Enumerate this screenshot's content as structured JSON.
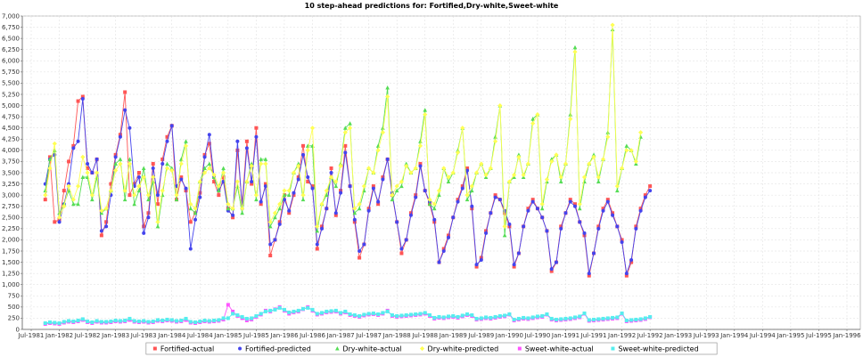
{
  "chart_data": {
    "type": "line",
    "title": "10 step-ahead predictions for: Fortified,Dry-white,Sweet-white",
    "xlabel": "",
    "ylabel": "",
    "ylim": [
      0,
      7000
    ],
    "y_ticks": [
      0,
      250,
      500,
      750,
      1000,
      1250,
      1500,
      1750,
      2000,
      2250,
      2500,
      2750,
      3000,
      3250,
      3500,
      3750,
      4000,
      4250,
      4500,
      4750,
      5000,
      5250,
      5500,
      5750,
      6000,
      6250,
      6500,
      6750,
      7000
    ],
    "y_tick_labels": [
      "0",
      "250",
      "500",
      "750",
      "1,000",
      "1,250",
      "1,500",
      "1,750",
      "2,000",
      "2,250",
      "2,500",
      "2,750",
      "3,000",
      "3,250",
      "3,500",
      "3,750",
      "4,000",
      "4,250",
      "4,500",
      "4,750",
      "5,000",
      "5,250",
      "5,500",
      "5,750",
      "6,000",
      "6,250",
      "6,500",
      "6,750",
      "7,000"
    ],
    "x_ticks": [
      "Jul-1981",
      "Jan-1982",
      "Jul-1982",
      "Jan-1983",
      "Jul-1983",
      "Jan-1984",
      "Jul-1984",
      "Jan-1985",
      "Jul-1985",
      "Jan-1986",
      "Jul-1986",
      "Jan-1987",
      "Jul-1987",
      "Jan-1988",
      "Jul-1988",
      "Jan-1989",
      "Jul-1989",
      "Jan-1990",
      "Jul-1990",
      "Jan-1991",
      "Jul-1991",
      "Jan-1992",
      "Jul-1992",
      "Jan-1993",
      "Jul-1993",
      "Jan-1994",
      "Jul-1994",
      "Jan-1995",
      "Jul-1995",
      "Jan-1996"
    ],
    "x_start": "1981-07",
    "x_end": "1996-01",
    "grid": true,
    "legend_position": "bottom",
    "series": [
      {
        "name": "Fortified-actual",
        "color": "#ff5555",
        "marker": "square",
        "start": "1981-10",
        "values": [
          2900,
          3850,
          2400,
          2450,
          3100,
          3750,
          4100,
          5100,
          5200,
          3600,
          3500,
          3800,
          2100,
          2400,
          3250,
          3900,
          4350,
          5300,
          3000,
          3250,
          3500,
          2300,
          2600,
          3700,
          2800,
          3800,
          4300,
          4550,
          2900,
          3400,
          3100,
          2400,
          2600,
          3050,
          3900,
          4150,
          3300,
          3000,
          3400,
          2700,
          2500,
          4000,
          2800,
          4200,
          3250,
          4500,
          2800,
          3250,
          1650,
          2000,
          2400,
          3000,
          2600,
          3000,
          3400,
          4100,
          3300,
          3200,
          1800,
          2300,
          2700,
          3600,
          2550,
          3100,
          4100,
          3200,
          2400,
          1600,
          1900,
          2700,
          3200,
          2800,
          3400,
          3800,
          3000,
          2400,
          1700,
          2000,
          2600,
          3000,
          3700,
          3100,
          2800,
          2400,
          1500,
          1800,
          2100,
          2500,
          2900,
          3200,
          3600,
          2700,
          1400,
          1600,
          2200,
          2600,
          3000,
          2900,
          2600,
          2300,
          1400,
          1700,
          2300,
          2700,
          2900,
          2700,
          2500,
          2200,
          1300,
          1500,
          2300,
          2600,
          2900,
          2800,
          2400,
          2100,
          1200,
          1700,
          2300,
          2700,
          2900,
          2600,
          2300,
          2000,
          1200,
          1500,
          2300,
          2700,
          3000,
          3200
        ]
      },
      {
        "name": "Fortified-predicted",
        "color": "#4444ee",
        "marker": "circle",
        "start": "1981-10",
        "values": [
          3250,
          3800,
          3900,
          2400,
          2800,
          3250,
          4050,
          4200,
          5150,
          3700,
          3500,
          3800,
          2200,
          2300,
          3000,
          3850,
          4300,
          4900,
          4500,
          3200,
          3400,
          2150,
          2500,
          3600,
          3000,
          3700,
          4200,
          4550,
          3200,
          3350,
          3150,
          1800,
          2450,
          2950,
          3850,
          4350,
          3400,
          3100,
          3300,
          2650,
          2550,
          4200,
          2700,
          4050,
          3300,
          4300,
          2850,
          3200,
          1900,
          2000,
          2350,
          2900,
          2650,
          3050,
          3350,
          3900,
          3400,
          3150,
          1900,
          2250,
          2700,
          3500,
          2600,
          3050,
          3950,
          3200,
          2450,
          1750,
          1900,
          2650,
          3150,
          2850,
          3350,
          3800,
          3050,
          2400,
          1800,
          2000,
          2550,
          2950,
          3650,
          3100,
          2850,
          2450,
          1500,
          1750,
          2050,
          2500,
          2850,
          3150,
          3550,
          2750,
          1450,
          1550,
          2150,
          2600,
          2950,
          2900,
          2650,
          2350,
          1450,
          1700,
          2300,
          2650,
          2850,
          2700,
          2500,
          2200,
          1350,
          1500,
          2250,
          2600,
          2850,
          2750,
          2400,
          2150,
          1250,
          1700,
          2250,
          2650,
          2850,
          2550,
          2300,
          1950,
          1250,
          1550,
          2250,
          2650,
          2950,
          3100
        ]
      },
      {
        "name": "Dry-white-actual",
        "color": "#55dd55",
        "marker": "triangle",
        "start": "1981-10",
        "values": [
          3100,
          3800,
          4000,
          2600,
          2800,
          3100,
          2800,
          2800,
          3400,
          3400,
          2900,
          3400,
          2600,
          2700,
          3100,
          3700,
          3800,
          2900,
          3800,
          2800,
          3100,
          3600,
          2900,
          3300,
          2300,
          3000,
          3700,
          3600,
          2900,
          3800,
          4200,
          2700,
          2600,
          3300,
          3600,
          3700,
          3400,
          3100,
          3600,
          2700,
          2700,
          3200,
          2600,
          3300,
          3700,
          2900,
          3800,
          3800,
          2300,
          2500,
          2700,
          3000,
          3000,
          3500,
          3700,
          2900,
          4100,
          4100,
          2200,
          2800,
          3000,
          3400,
          3200,
          3700,
          4500,
          4600,
          2600,
          2700,
          3100,
          3600,
          3500,
          4100,
          4500,
          5400,
          2900,
          3100,
          3200,
          3700,
          3500,
          3600,
          4200,
          4900,
          2800,
          2700,
          3000,
          3600,
          3300,
          3500,
          4000,
          4500,
          2900,
          3100,
          3500,
          3700,
          3400,
          3600,
          4300,
          5000,
          2100,
          3300,
          3400,
          3900,
          3400,
          3700,
          4700,
          4800,
          2700,
          3300,
          3800,
          3900,
          3300,
          3700,
          4800,
          6300,
          2700,
          3300,
          3700,
          3900,
          3300,
          3800,
          4400,
          6700,
          3100,
          3600,
          4100,
          4000,
          3700,
          4300
        ]
      },
      {
        "name": "Dry-white-predicted",
        "color": "#ffff55",
        "marker": "diamond",
        "start": "1981-10",
        "values": [
          3000,
          3600,
          4150,
          2500,
          2750,
          3200,
          2900,
          3200,
          3850,
          3500,
          3000,
          3500,
          2650,
          2700,
          3100,
          3550,
          3700,
          3100,
          3700,
          3000,
          3200,
          3400,
          3000,
          3400,
          2400,
          3100,
          3600,
          3550,
          3000,
          3700,
          4100,
          2800,
          2700,
          3300,
          3500,
          3600,
          3450,
          3200,
          3500,
          2800,
          2700,
          3300,
          2700,
          3300,
          3650,
          3000,
          3700,
          3700,
          2400,
          2600,
          2800,
          3100,
          3100,
          3500,
          3650,
          3000,
          4000,
          4500,
          2300,
          2800,
          3100,
          3400,
          3300,
          3650,
          4400,
          4500,
          2700,
          2800,
          3200,
          3600,
          3500,
          4000,
          4400,
          5200,
          3000,
          3200,
          3300,
          3650,
          3500,
          3600,
          4100,
          4800,
          2900,
          2800,
          3100,
          3600,
          3400,
          3500,
          3950,
          4500,
          3000,
          3200,
          3500,
          3700,
          3450,
          3600,
          4200,
          5000,
          2300,
          3300,
          3450,
          3850,
          3450,
          3700,
          4600,
          4800,
          2800,
          3350,
          3750,
          3900,
          3400,
          3700,
          4700,
          6200,
          2800,
          3400,
          3700,
          3850,
          3400,
          3800,
          4300,
          6800,
          3200,
          3600,
          4000,
          4000,
          3750,
          4400
        ]
      },
      {
        "name": "Sweet-white-actual",
        "color": "#ff55ff",
        "marker": "square",
        "start": "1981-10",
        "values": [
          120,
          140,
          130,
          120,
          150,
          170,
          160,
          180,
          210,
          160,
          140,
          170,
          150,
          150,
          160,
          180,
          170,
          180,
          210,
          170,
          160,
          170,
          150,
          160,
          190,
          180,
          200,
          190,
          170,
          180,
          210,
          150,
          140,
          160,
          180,
          170,
          180,
          190,
          220,
          550,
          400,
          300,
          250,
          200,
          220,
          280,
          330,
          420,
          400,
          450,
          500,
          420,
          350,
          380,
          400,
          450,
          500,
          420,
          330,
          350,
          380,
          390,
          400,
          350,
          380,
          320,
          300,
          280,
          310,
          330,
          340,
          320,
          350,
          420,
          300,
          280,
          290,
          300,
          310,
          320,
          330,
          350,
          300,
          240,
          260,
          250,
          270,
          280,
          260,
          290,
          320,
          300,
          220,
          230,
          250,
          240,
          260,
          280,
          290,
          330,
          200,
          220,
          240,
          230,
          250,
          270,
          280,
          330,
          220,
          200,
          210,
          220,
          230,
          250,
          270,
          350,
          190,
          200,
          210,
          220,
          230,
          240,
          250,
          350,
          180,
          190,
          200,
          210,
          230,
          270
        ]
      },
      {
        "name": "Sweet-white-predicted",
        "color": "#55eeee",
        "marker": "square",
        "start": "1981-10",
        "values": [
          140,
          160,
          150,
          140,
          170,
          190,
          180,
          200,
          230,
          180,
          160,
          190,
          170,
          170,
          180,
          200,
          190,
          200,
          240,
          190,
          180,
          190,
          170,
          180,
          210,
          200,
          220,
          210,
          190,
          200,
          240,
          170,
          160,
          180,
          200,
          190,
          200,
          210,
          250,
          250,
          350,
          320,
          280,
          240,
          250,
          300,
          350,
          400,
          420,
          440,
          480,
          440,
          380,
          400,
          420,
          460,
          480,
          440,
          350,
          370,
          400,
          410,
          420,
          370,
          400,
          340,
          320,
          300,
          330,
          350,
          360,
          340,
          370,
          400,
          320,
          300,
          310,
          320,
          330,
          340,
          350,
          370,
          320,
          260,
          280,
          270,
          290,
          300,
          280,
          310,
          340,
          320,
          240,
          250,
          270,
          260,
          280,
          300,
          310,
          340,
          220,
          240,
          260,
          250,
          270,
          290,
          300,
          340,
          240,
          220,
          230,
          240,
          250,
          270,
          290,
          360,
          210,
          220,
          230,
          240,
          250,
          260,
          270,
          360,
          200,
          210,
          220,
          230,
          250,
          280
        ]
      }
    ]
  }
}
